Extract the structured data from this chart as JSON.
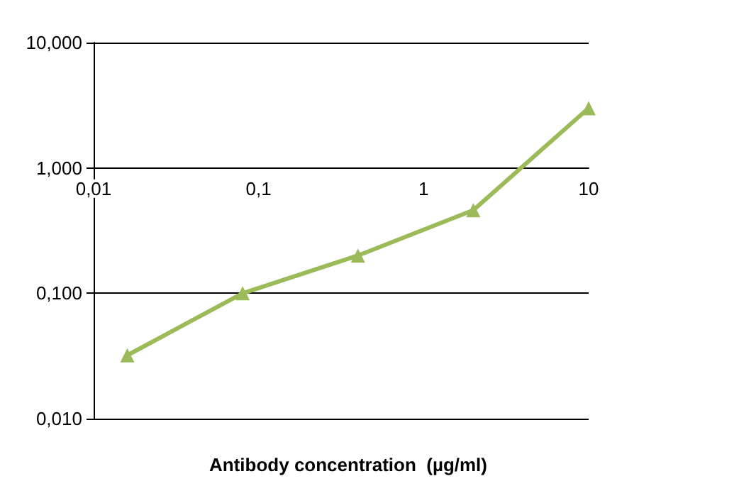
{
  "chart_data": {
    "type": "line",
    "xlabel": "Antibody concentration  (µg/ml)",
    "x": [
      0.016,
      0.08,
      0.4,
      2,
      10
    ],
    "series": [
      {
        "color": "#9bbb59",
        "values": [
          0.032,
          0.1,
          0.2,
          0.46,
          3.0
        ]
      }
    ],
    "log": "xy",
    "xlim": [
      0.01,
      10
    ],
    "ylim": [
      0.01,
      10
    ],
    "xticks": [
      {
        "value": 0.01,
        "label": "0,01"
      },
      {
        "value": 0.1,
        "label": "0,1"
      },
      1,
      10
    ],
    "yticks": [
      {
        "value": 0.01,
        "label": "0,010"
      },
      {
        "value": 0.1,
        "label": "0,100"
      },
      {
        "value": 1,
        "label": "1,000"
      },
      {
        "value": 10,
        "label": "10,000"
      }
    ],
    "grid": "y",
    "marker": "triangle",
    "line_style": "solid"
  }
}
